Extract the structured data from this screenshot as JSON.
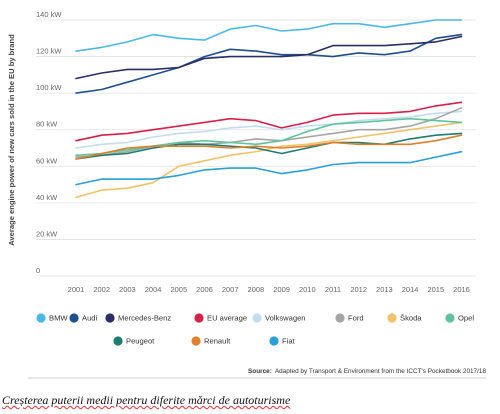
{
  "chart_data": {
    "type": "line",
    "ylabel": "Average engine power of new cars sold in the EU by brand",
    "xlabel": "",
    "ylim": [
      0,
      140
    ],
    "yticks": [
      0,
      20,
      40,
      60,
      80,
      100,
      120,
      140
    ],
    "y_tick_labels": [
      "0",
      "20 kW",
      "40 kW",
      "60 kW",
      "80 kW",
      "100 kW",
      "120 kW",
      "140 kW"
    ],
    "x": [
      "2001",
      "2002",
      "2003",
      "2004",
      "2005",
      "2006",
      "2007",
      "2008",
      "2009",
      "2010",
      "2011",
      "2012",
      "2013",
      "2014",
      "2015",
      "2016"
    ],
    "grid": "horizontal",
    "legend_position": "bottom",
    "series": [
      {
        "name": "BMW",
        "color": "#4cb8e6",
        "values": [
          123,
          125,
          128,
          132,
          130,
          129,
          135,
          137,
          134,
          135,
          138,
          138,
          136,
          138,
          140,
          140
        ]
      },
      {
        "name": "Audi",
        "color": "#1f4f8f",
        "values": [
          100,
          102,
          106,
          110,
          114,
          120,
          124,
          123,
          121,
          121,
          120,
          122,
          121,
          123,
          130,
          132
        ]
      },
      {
        "name": "Mercedes-Benz",
        "color": "#2b2e66",
        "values": [
          108,
          111,
          113,
          113,
          114,
          119,
          120,
          120,
          120,
          121,
          126,
          126,
          126,
          127,
          128,
          131
        ]
      },
      {
        "name": "EU average",
        "color": "#d8204b",
        "values": [
          74,
          77,
          78,
          80,
          82,
          84,
          86,
          85,
          81,
          84,
          88,
          89,
          89,
          90,
          93,
          95
        ]
      },
      {
        "name": "Volkswagen",
        "color": "#c3dcf0",
        "values": [
          70,
          72,
          73,
          76,
          78,
          79,
          81,
          82,
          80,
          82,
          83,
          85,
          86,
          87,
          89,
          90
        ]
      },
      {
        "name": "Ford",
        "color": "#a5a5a5",
        "values": [
          65,
          66,
          68,
          71,
          73,
          72,
          73,
          75,
          74,
          76,
          78,
          80,
          80,
          82,
          86,
          92
        ]
      },
      {
        "name": "Škoda",
        "color": "#f0c36a",
        "values": [
          43,
          47,
          48,
          51,
          60,
          63,
          66,
          68,
          71,
          72,
          74,
          76,
          78,
          80,
          82,
          84
        ]
      },
      {
        "name": "Opel",
        "color": "#5dc49c",
        "values": [
          66,
          67,
          69,
          71,
          73,
          74,
          73,
          72,
          74,
          79,
          83,
          84,
          85,
          86,
          85,
          84
        ]
      },
      {
        "name": "Peugeot",
        "color": "#1f7d6f",
        "values": [
          64,
          66,
          67,
          70,
          72,
          72,
          71,
          70,
          67,
          70,
          73,
          73,
          72,
          75,
          77,
          78
        ]
      },
      {
        "name": "Renault",
        "color": "#e07f2e",
        "values": [
          64,
          67,
          70,
          71,
          71,
          71,
          70,
          71,
          70,
          71,
          73,
          72,
          72,
          72,
          74,
          77
        ]
      },
      {
        "name": "Fiat",
        "color": "#2a9fd8",
        "values": [
          50,
          53,
          53,
          53,
          55,
          58,
          59,
          59,
          56,
          58,
          61,
          62,
          62,
          62,
          65,
          68
        ]
      }
    ]
  },
  "legend_rows": [
    [
      "BMW",
      "Audi",
      "Mercedes-Benz",
      "EU average",
      "Volkswagen",
      "Ford",
      "Škoda",
      "Opel"
    ],
    [
      "Peugeot",
      "Renault",
      "Fiat"
    ]
  ],
  "source": {
    "label": "Source:",
    "text": "Adapted by Transport & Environment from the ICCT's Pocketbook 2017/18"
  },
  "caption": "Creșterea puterii medii pentru diferite mărci de autoturisme"
}
